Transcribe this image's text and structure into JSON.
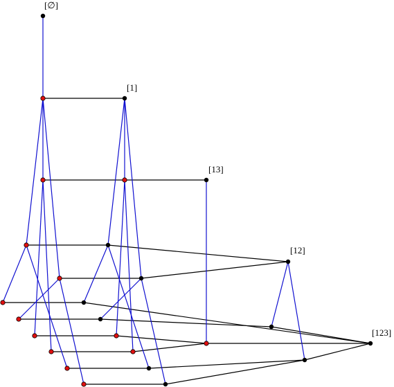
{
  "nodes": [
    {
      "label": "[∅]"
    },
    {
      "label": "[1]"
    },
    {
      "label": "[13]"
    },
    {
      "label": "[12]"
    },
    {
      "label": "[123]"
    }
  ]
}
